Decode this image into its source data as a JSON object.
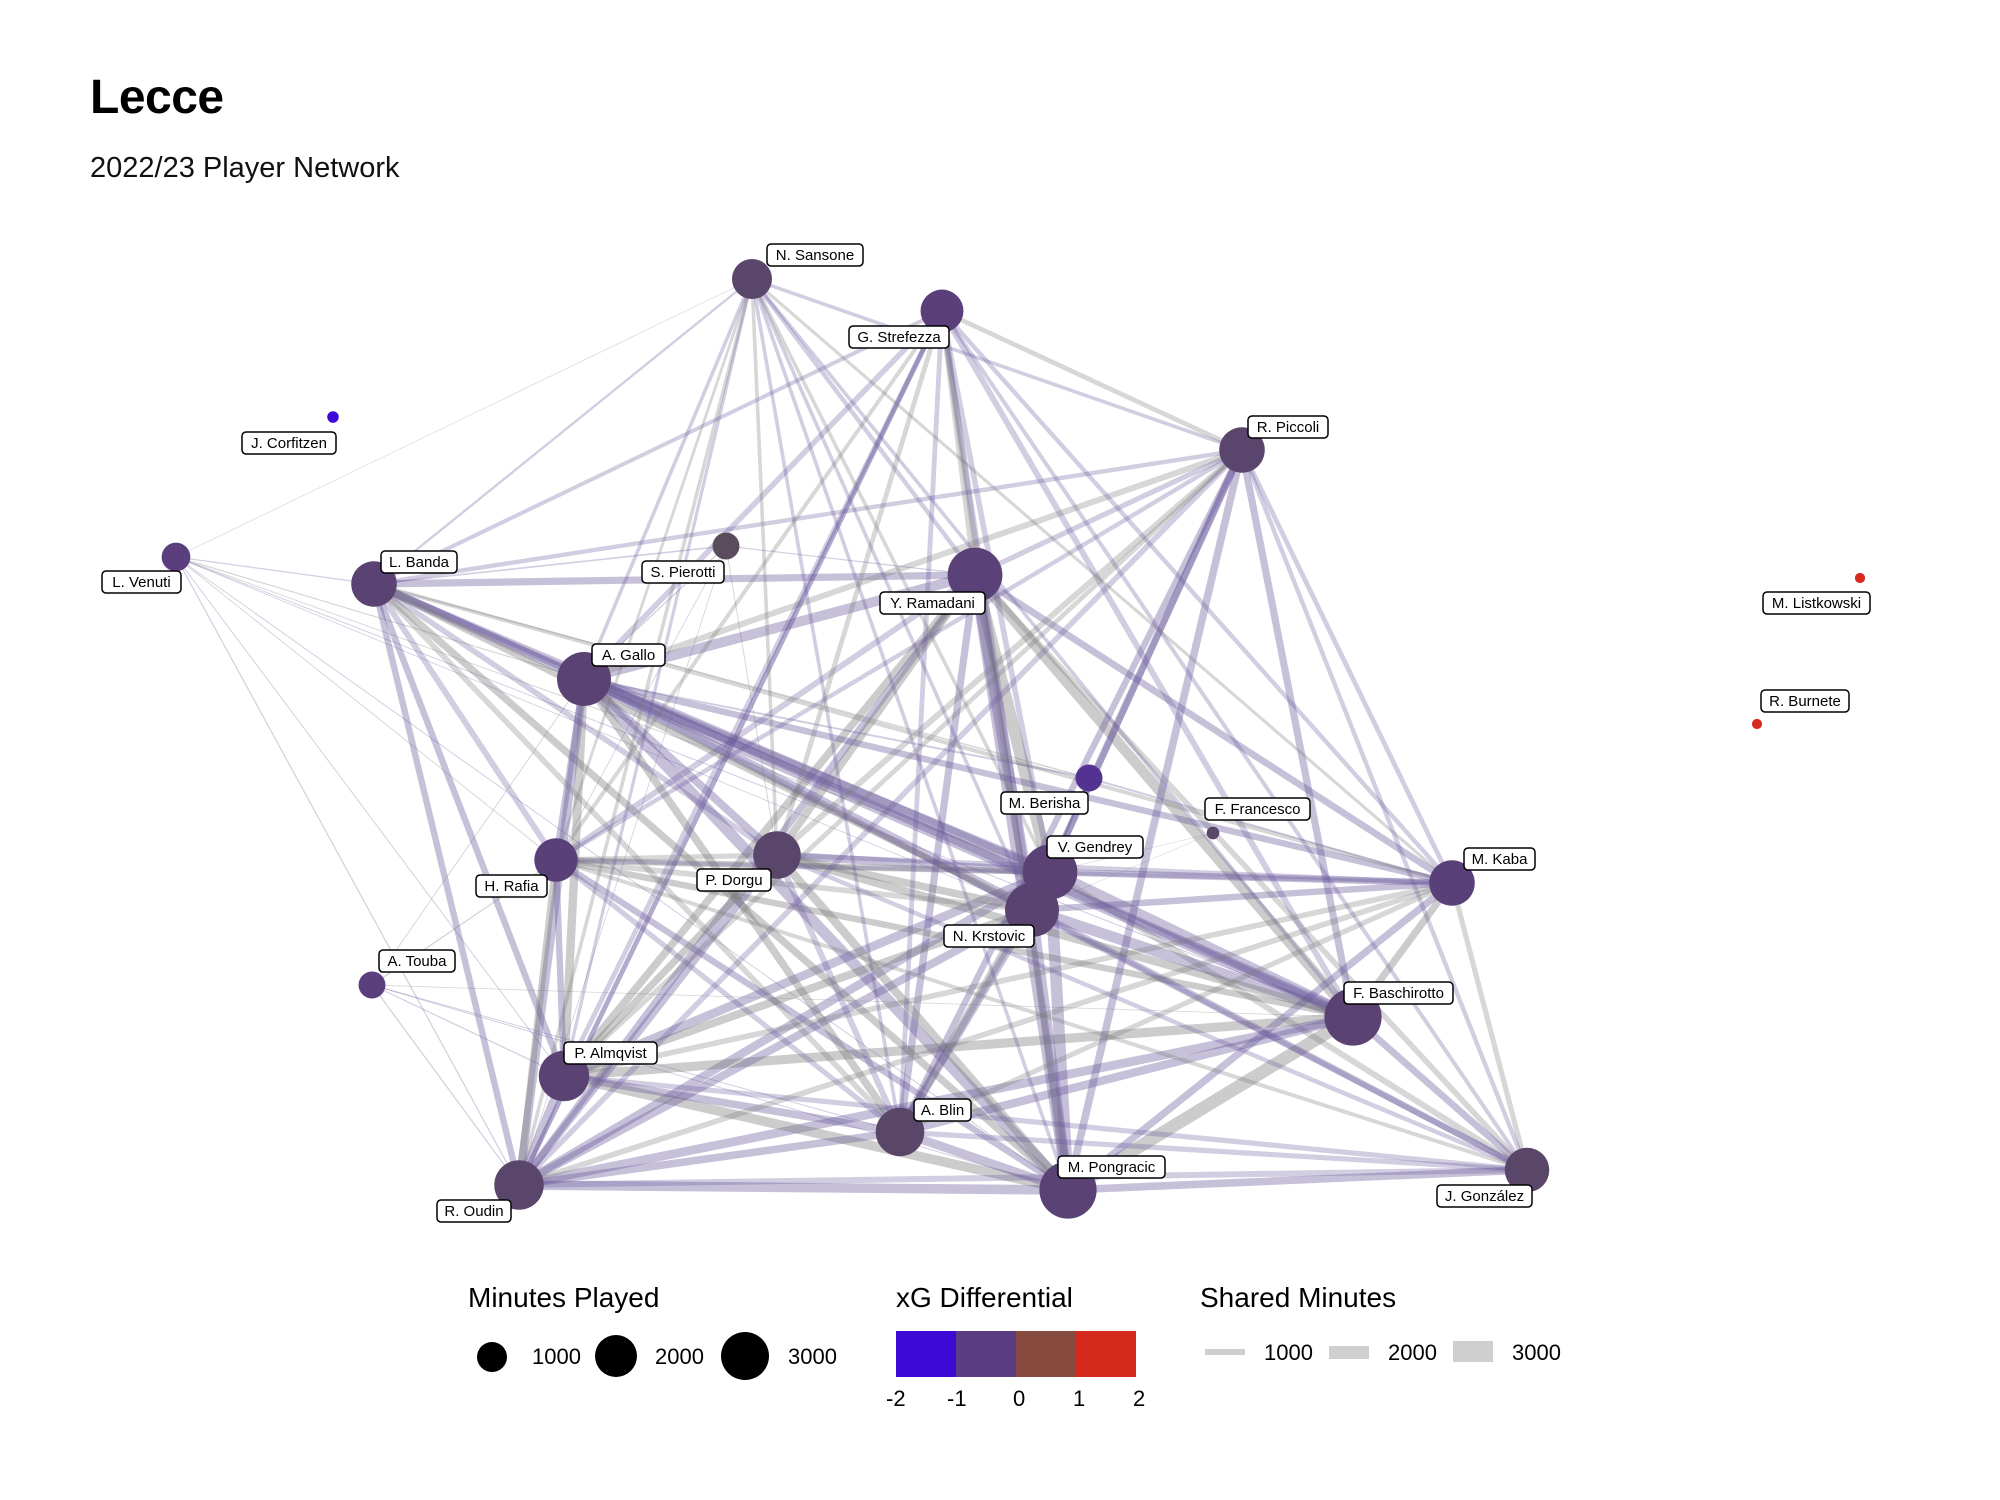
{
  "title": "Lecce",
  "subtitle": "2022/23 Player Network",
  "nodes": [
    {
      "id": "sansone",
      "label": "N. Sansone",
      "minutes": 1500,
      "xg": -0.4
    },
    {
      "id": "strefezza",
      "label": "G. Strefezza",
      "minutes": 1750,
      "xg": -0.8
    },
    {
      "id": "corfitzen",
      "label": "J. Corfitzen",
      "minutes": 60,
      "xg": -2
    },
    {
      "id": "piccoli",
      "label": "R. Piccoli",
      "minutes": 2000,
      "xg": -0.45
    },
    {
      "id": "venuti",
      "label": "L. Venuti",
      "minutes": 700,
      "xg": -0.9
    },
    {
      "id": "banda",
      "label": "L. Banda",
      "minutes": 2000,
      "xg": -0.6
    },
    {
      "id": "pierotti",
      "label": "S. Pierotti",
      "minutes": 600,
      "xg": 0
    },
    {
      "id": "ramadani",
      "label": "Y. Ramadani",
      "minutes": 3000,
      "xg": -0.7
    },
    {
      "id": "listkowski",
      "label": "M. Listkowski",
      "minutes": 40,
      "xg": 2
    },
    {
      "id": "gallo",
      "label": "A. Gallo",
      "minutes": 2900,
      "xg": -0.6
    },
    {
      "id": "burnete",
      "label": "R. Burnete",
      "minutes": 40,
      "xg": 2
    },
    {
      "id": "berisha",
      "label": "M. Berisha",
      "minutes": 600,
      "xg": -1.2
    },
    {
      "id": "francesco",
      "label": "F. Francesco",
      "minutes": 80,
      "xg": -0.3
    },
    {
      "id": "gendrey",
      "label": "V. Gendrey",
      "minutes": 3000,
      "xg": -0.65
    },
    {
      "id": "kaba",
      "label": "M. Kaba",
      "minutes": 2000,
      "xg": -0.75
    },
    {
      "id": "rafia",
      "label": "H. Rafia",
      "minutes": 1800,
      "xg": -0.75
    },
    {
      "id": "dorgu",
      "label": "P. Dorgu",
      "minutes": 2200,
      "xg": -0.4
    },
    {
      "id": "krstovic",
      "label": "N. Krstovic",
      "minutes": 2900,
      "xg": -0.55
    },
    {
      "id": "touba",
      "label": "A. Touba",
      "minutes": 600,
      "xg": -0.9
    },
    {
      "id": "baschirotto",
      "label": "F. Baschirotto",
      "minutes": 3300,
      "xg": -0.6
    },
    {
      "id": "almqvist",
      "label": "P. Almqvist",
      "minutes": 2500,
      "xg": -0.6
    },
    {
      "id": "blin",
      "label": "A. Blin",
      "minutes": 2300,
      "xg": -0.35
    },
    {
      "id": "pongracic",
      "label": "M. Pongracic",
      "minutes": 3300,
      "xg": -0.65
    },
    {
      "id": "gonzalez",
      "label": "J. González",
      "minutes": 1900,
      "xg": -0.35
    },
    {
      "id": "oudin",
      "label": "R. Oudin",
      "minutes": 2400,
      "xg": -0.4
    }
  ],
  "edges": [
    [
      "ramadani",
      "gendrey",
      3000
    ],
    [
      "ramadani",
      "krstovic",
      2800
    ],
    [
      "ramadani",
      "pongracic",
      2800
    ],
    [
      "ramadani",
      "baschirotto",
      2600
    ],
    [
      "ramadani",
      "gallo",
      2500
    ],
    [
      "ramadani",
      "banda",
      1800
    ],
    [
      "ramadani",
      "strefezza",
      1500
    ],
    [
      "ramadani",
      "piccoli",
      1300
    ],
    [
      "ramadani",
      "sansone",
      1100
    ],
    [
      "ramadani",
      "almqvist",
      1900
    ],
    [
      "ramadani",
      "blin",
      1800
    ],
    [
      "ramadani",
      "oudin",
      1800
    ],
    [
      "ramadani",
      "dorgu",
      1900
    ],
    [
      "ramadani",
      "rafia",
      1500
    ],
    [
      "ramadani",
      "kaba",
      1700
    ],
    [
      "ramadani",
      "gonzalez",
      1400
    ],
    [
      "gendrey",
      "baschirotto",
      3000
    ],
    [
      "gendrey",
      "pongracic",
      2900
    ],
    [
      "gendrey",
      "krstovic",
      2700
    ],
    [
      "gendrey",
      "gallo",
      2700
    ],
    [
      "gendrey",
      "almqvist",
      2200
    ],
    [
      "gendrey",
      "blin",
      2000
    ],
    [
      "gendrey",
      "oudin",
      2100
    ],
    [
      "gendrey",
      "dorgu",
      2000
    ],
    [
      "gendrey",
      "rafia",
      1600
    ],
    [
      "gendrey",
      "kaba",
      1700
    ],
    [
      "gendrey",
      "banda",
      1700
    ],
    [
      "gendrey",
      "gonzalez",
      1500
    ],
    [
      "gendrey",
      "piccoli",
      1600
    ],
    [
      "gendrey",
      "strefezza",
      1400
    ],
    [
      "baschirotto",
      "pongracic",
      3200
    ],
    [
      "baschirotto",
      "gallo",
      2800
    ],
    [
      "baschirotto",
      "krstovic",
      2700
    ],
    [
      "baschirotto",
      "almqvist",
      2300
    ],
    [
      "baschirotto",
      "oudin",
      2200
    ],
    [
      "baschirotto",
      "blin",
      2100
    ],
    [
      "baschirotto",
      "dorgu",
      2000
    ],
    [
      "baschirotto",
      "banda",
      1800
    ],
    [
      "baschirotto",
      "piccoli",
      1800
    ],
    [
      "baschirotto",
      "kaba",
      1800
    ],
    [
      "baschirotto",
      "gonzalez",
      1700
    ],
    [
      "baschirotto",
      "strefezza",
      1500
    ],
    [
      "baschirotto",
      "rafia",
      1600
    ],
    [
      "pongracic",
      "gallo",
      2800
    ],
    [
      "pongracic",
      "krstovic",
      2700
    ],
    [
      "pongracic",
      "almqvist",
      2400
    ],
    [
      "pongracic",
      "oudin",
      2400
    ],
    [
      "pongracic",
      "blin",
      2200
    ],
    [
      "pongracic",
      "dorgu",
      2100
    ],
    [
      "pongracic",
      "gonzalez",
      1900
    ],
    [
      "pongracic",
      "kaba",
      1800
    ],
    [
      "pongracic",
      "banda",
      1800
    ],
    [
      "pongracic",
      "piccoli",
      1900
    ],
    [
      "pongracic",
      "rafia",
      1600
    ],
    [
      "pongracic",
      "strefezza",
      1500
    ],
    [
      "gallo",
      "krstovic",
      2500
    ],
    [
      "gallo",
      "banda",
      2200
    ],
    [
      "gallo",
      "almqvist",
      2100
    ],
    [
      "gallo",
      "oudin",
      2100
    ],
    [
      "gallo",
      "dorgu",
      2000
    ],
    [
      "gallo",
      "blin",
      1900
    ],
    [
      "gallo",
      "rafia",
      1700
    ],
    [
      "gallo",
      "kaba",
      1600
    ],
    [
      "gallo",
      "piccoli",
      1500
    ],
    [
      "gallo",
      "strefezza",
      1400
    ],
    [
      "gallo",
      "gonzalez",
      1400
    ],
    [
      "krstovic",
      "almqvist",
      2000
    ],
    [
      "krstovic",
      "blin",
      2000
    ],
    [
      "krstovic",
      "oudin",
      2000
    ],
    [
      "krstovic",
      "dorgu",
      1900
    ],
    [
      "krstovic",
      "piccoli",
      1800
    ],
    [
      "krstovic",
      "kaba",
      1600
    ],
    [
      "krstovic",
      "banda",
      1600
    ],
    [
      "krstovic",
      "gonzalez",
      1600
    ],
    [
      "krstovic",
      "strefezza",
      1400
    ],
    [
      "krstovic",
      "rafia",
      1400
    ],
    [
      "almqvist",
      "oudin",
      2200
    ],
    [
      "almqvist",
      "blin",
      1900
    ],
    [
      "almqvist",
      "dorgu",
      1800
    ],
    [
      "almqvist",
      "rafia",
      1600
    ],
    [
      "almqvist",
      "banda",
      1600
    ],
    [
      "almqvist",
      "kaba",
      1400
    ],
    [
      "almqvist",
      "gonzalez",
      1300
    ],
    [
      "almqvist",
      "strefezza",
      1200
    ],
    [
      "almqvist",
      "piccoli",
      1200
    ],
    [
      "oudin",
      "blin",
      1900
    ],
    [
      "oudin",
      "dorgu",
      1800
    ],
    [
      "oudin",
      "rafia",
      1700
    ],
    [
      "oudin",
      "banda",
      1600
    ],
    [
      "oudin",
      "gonzalez",
      1500
    ],
    [
      "oudin",
      "kaba",
      1400
    ],
    [
      "oudin",
      "piccoli",
      1400
    ],
    [
      "oudin",
      "strefezza",
      1200
    ],
    [
      "oudin",
      "sansone",
      900
    ],
    [
      "banda",
      "rafia",
      1500
    ],
    [
      "banda",
      "dorgu",
      1400
    ],
    [
      "banda",
      "blin",
      1400
    ],
    [
      "banda",
      "piccoli",
      1100
    ],
    [
      "banda",
      "strefezza",
      1000
    ],
    [
      "banda",
      "kaba",
      1000
    ],
    [
      "banda",
      "pierotti",
      400
    ],
    [
      "piccoli",
      "blin",
      1600
    ],
    [
      "piccoli",
      "dorgu",
      1500
    ],
    [
      "piccoli",
      "kaba",
      1200
    ],
    [
      "piccoli",
      "gonzalez",
      1100
    ],
    [
      "piccoli",
      "strefezza",
      1200
    ],
    [
      "piccoli",
      "sansone",
      900
    ],
    [
      "piccoli",
      "rafia",
      1100
    ],
    [
      "strefezza",
      "dorgu",
      1200
    ],
    [
      "strefezza",
      "blin",
      1200
    ],
    [
      "strefezza",
      "kaba",
      1100
    ],
    [
      "strefezza",
      "rafia",
      1000
    ],
    [
      "strefezza",
      "oudin",
      1200
    ],
    [
      "strefezza",
      "gonzalez",
      1000
    ],
    [
      "sansone",
      "dorgu",
      900
    ],
    [
      "sansone",
      "blin",
      900
    ],
    [
      "sansone",
      "almqvist",
      800
    ],
    [
      "sansone",
      "rafia",
      700
    ],
    [
      "sansone",
      "gallo",
      900
    ],
    [
      "sansone",
      "banda",
      600
    ],
    [
      "sansone",
      "kaba",
      800
    ],
    [
      "sansone",
      "krstovic",
      900
    ],
    [
      "sansone",
      "pongracic",
      900
    ],
    [
      "sansone",
      "gendrey",
      900
    ],
    [
      "sansone",
      "baschirotto",
      900
    ],
    [
      "blin",
      "dorgu",
      1500
    ],
    [
      "blin",
      "kaba",
      1300
    ],
    [
      "blin",
      "gonzalez",
      1300
    ],
    [
      "blin",
      "rafia",
      1300
    ],
    [
      "dorgu",
      "rafia",
      1300
    ],
    [
      "dorgu",
      "kaba",
      1200
    ],
    [
      "dorgu",
      "gonzalez",
      1100
    ],
    [
      "kaba",
      "gonzalez",
      1300
    ],
    [
      "kaba",
      "rafia",
      1000
    ],
    [
      "kaba",
      "berisha",
      500
    ],
    [
      "rafia",
      "gonzalez",
      1000
    ],
    [
      "berisha",
      "gallo",
      500
    ],
    [
      "berisha",
      "gendrey",
      500
    ],
    [
      "berisha",
      "banda",
      400
    ],
    [
      "berisha",
      "krstovic",
      500
    ],
    [
      "venuti",
      "banda",
      300
    ],
    [
      "venuti",
      "gallo",
      300
    ],
    [
      "venuti",
      "oudin",
      300
    ],
    [
      "venuti",
      "almqvist",
      250
    ],
    [
      "venuti",
      "rafia",
      250
    ],
    [
      "venuti",
      "pongracic",
      250
    ],
    [
      "venuti",
      "baschirotto",
      250
    ],
    [
      "venuti",
      "gendrey",
      250
    ],
    [
      "venuti",
      "sansone",
      150
    ],
    [
      "venuti",
      "krstovic",
      200
    ],
    [
      "touba",
      "rafia",
      350
    ],
    [
      "touba",
      "oudin",
      300
    ],
    [
      "touba",
      "almqvist",
      300
    ],
    [
      "touba",
      "gallo",
      250
    ],
    [
      "touba",
      "pongracic",
      250
    ],
    [
      "touba",
      "blin",
      250
    ],
    [
      "touba",
      "baschirotto",
      200
    ],
    [
      "pierotti",
      "gallo",
      300
    ],
    [
      "pierotti",
      "ramadani",
      300
    ],
    [
      "pierotti",
      "dorgu",
      250
    ],
    [
      "pierotti",
      "rafia",
      200
    ],
    [
      "pierotti",
      "oudin",
      200
    ],
    [
      "francesco",
      "krstovic",
      60
    ],
    [
      "francesco",
      "gendrey",
      60
    ]
  ],
  "legend": {
    "minutes": {
      "title": "Minutes Played",
      "items": [
        {
          "label": "1000",
          "value": 1000
        },
        {
          "label": "2000",
          "value": 2000
        },
        {
          "label": "3000",
          "value": 3000
        }
      ]
    },
    "xg": {
      "title": "xG Differential",
      "ticks": [
        "-2",
        "-1",
        "0",
        "1",
        "2"
      ],
      "colors": [
        "#3c0ad4",
        "#5a3c82",
        "#864a3e",
        "#d62a1e"
      ]
    },
    "shared": {
      "title": "Shared Minutes",
      "items": [
        {
          "label": "1000",
          "value": 1000
        },
        {
          "label": "2000",
          "value": 2000
        },
        {
          "label": "3000",
          "value": 3000
        }
      ]
    }
  }
}
